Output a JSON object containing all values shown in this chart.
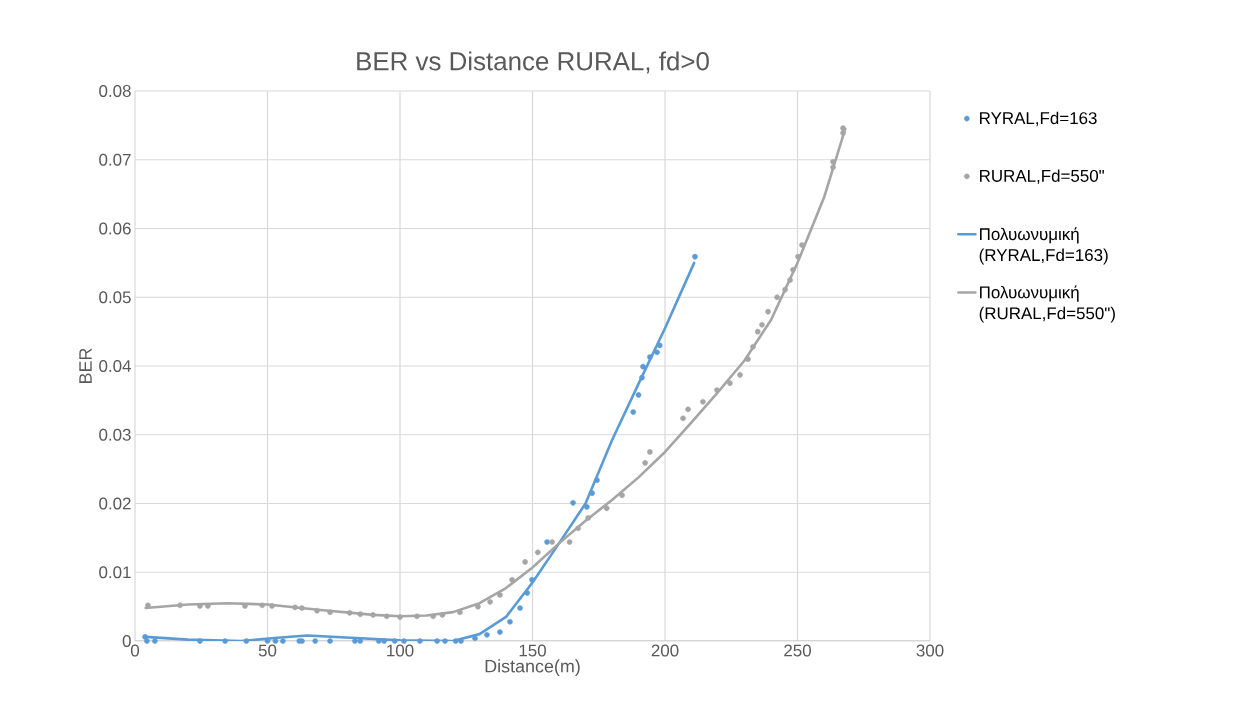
{
  "chart_data": {
    "type": "scatter",
    "title": "BER vs Distance RURAL, fd>0",
    "xlabel": "Distance(m)",
    "ylabel": "BER",
    "xlim": [
      0,
      300
    ],
    "ylim": [
      0,
      0.08
    ],
    "xticks": [
      0,
      50,
      100,
      150,
      200,
      250,
      300
    ],
    "yticks": [
      0,
      0.01,
      0.02,
      0.03,
      0.04,
      0.05,
      0.06,
      0.07,
      0.08
    ],
    "grid": true,
    "legend": "right",
    "series": [
      {
        "name": "RYRAL,Fd=163",
        "type": "scatter",
        "marker": "circle",
        "color": "#5b9bd5",
        "x": [
          3.8,
          4.5,
          7.5,
          24.5,
          34,
          42,
          50,
          53,
          55.8,
          62,
          63,
          68,
          73.6,
          83,
          85,
          92,
          94,
          98,
          101.5,
          107.5,
          114,
          117,
          121,
          123,
          128.3,
          132.8,
          137.7,
          141.5,
          145.3,
          148,
          149.8,
          155.5,
          165.3,
          170.5,
          172.5,
          174.3,
          188,
          190,
          191.3,
          191.7,
          194.3,
          197,
          198,
          211.3
        ],
        "values": [
          0.0006,
          0,
          0,
          0,
          0,
          0,
          0,
          0,
          0,
          0,
          0,
          0,
          0,
          0,
          0,
          0,
          0,
          0,
          0,
          0,
          0,
          0,
          0,
          0,
          0.0004,
          0.0009,
          0.0013,
          0.0028,
          0.0048,
          0.007,
          0.0089,
          0.0144,
          0.0201,
          0.0195,
          0.0215,
          0.0234,
          0.0333,
          0.0358,
          0.0383,
          0.0399,
          0.0413,
          0.042,
          0.043,
          0.0559
        ]
      },
      {
        "name": "RURAL,Fd=550\"",
        "type": "scatter",
        "marker": "circle",
        "color": "#a5a5a5",
        "x": [
          4.9,
          17,
          24.5,
          27.5,
          41.5,
          48,
          51.7,
          60.4,
          63,
          68.7,
          73.6,
          81,
          85,
          89.8,
          95,
          100,
          106.4,
          112.5,
          116,
          122.6,
          129.4,
          134,
          137.7,
          142.3,
          147.2,
          152,
          157.4,
          164,
          167.2,
          171,
          178,
          183.8,
          192.5,
          194.3,
          206.8,
          208.7,
          214.3,
          219.6,
          224.5,
          228.3,
          231.3,
          233.2,
          235,
          236.6,
          238.9,
          242.3,
          245.3,
          247.2,
          248.3,
          250.2,
          251.7,
          263.4,
          263.4,
          267.2,
          267.2
        ],
        "values": [
          0.0052,
          0.0052,
          0.0051,
          0.0051,
          0.0051,
          0.0052,
          0.0051,
          0.0049,
          0.0048,
          0.0044,
          0.0042,
          0.0041,
          0.0039,
          0.0038,
          0.0036,
          0.0035,
          0.0036,
          0.0036,
          0.0038,
          0.0042,
          0.005,
          0.0057,
          0.0067,
          0.0089,
          0.0115,
          0.0129,
          0.0144,
          0.0144,
          0.0164,
          0.0179,
          0.0193,
          0.0212,
          0.0259,
          0.0275,
          0.0324,
          0.0337,
          0.0348,
          0.0365,
          0.0375,
          0.0387,
          0.041,
          0.0428,
          0.045,
          0.046,
          0.0479,
          0.05,
          0.0511,
          0.0525,
          0.054,
          0.0559,
          0.0576,
          0.0689,
          0.0697,
          0.0739,
          0.0746
        ]
      },
      {
        "name": "Πολυωνυμική (RYRAL,Fd=163)",
        "type": "line",
        "marker": "none",
        "line_style": "solid",
        "color": "#5b9bd5",
        "x": [
          4,
          20,
          40,
          55,
          65,
          80,
          100,
          120,
          130,
          140,
          150,
          160,
          170,
          180,
          190,
          200,
          211
        ],
        "values": [
          0.0006,
          0.0002,
          0,
          0.0005,
          0.0008,
          0.0005,
          0.0001,
          0,
          0.001,
          0.0035,
          0.0085,
          0.0142,
          0.02,
          0.0292,
          0.0374,
          0.0455,
          0.055
        ]
      },
      {
        "name": "Πολυωνυμική (RURAL,Fd=550\")",
        "type": "line",
        "marker": "none",
        "line_style": "solid",
        "color": "#a5a5a5",
        "x": [
          4,
          20,
          35,
          50,
          70,
          90,
          100,
          110,
          120,
          130,
          140,
          150,
          160,
          170,
          180,
          190,
          200,
          210,
          220,
          230,
          240,
          250,
          260,
          268
        ],
        "values": [
          0.0048,
          0.0053,
          0.0055,
          0.0053,
          0.0045,
          0.0038,
          0.0036,
          0.0037,
          0.0042,
          0.0055,
          0.0077,
          0.0107,
          0.0142,
          0.0175,
          0.0205,
          0.0238,
          0.0275,
          0.0318,
          0.0362,
          0.0408,
          0.0467,
          0.055,
          0.0645,
          0.0745
        ]
      }
    ]
  }
}
